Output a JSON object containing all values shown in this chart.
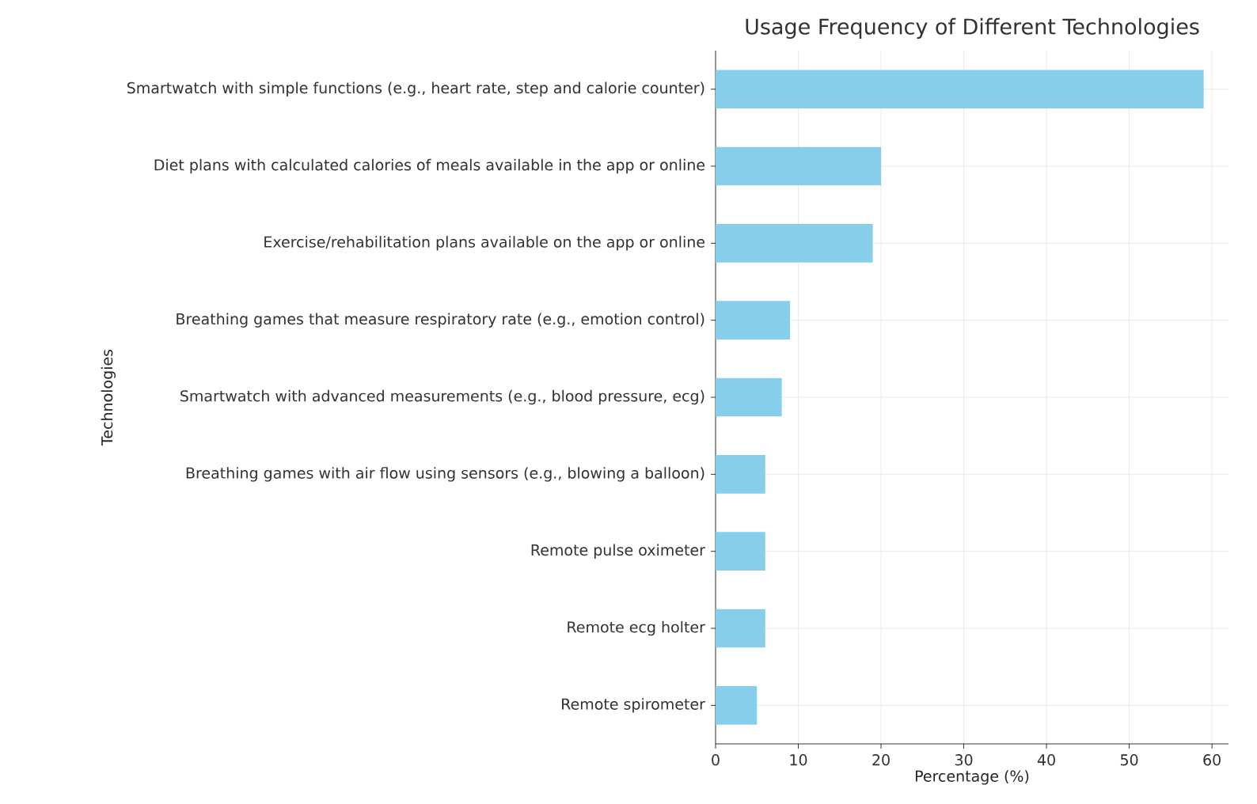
{
  "chart_data": {
    "type": "bar",
    "orientation": "horizontal",
    "title": "Usage Frequency of Different Technologies",
    "xlabel": "Percentage (%)",
    "ylabel": "Technologies",
    "categories": [
      "Smartwatch with simple functions (e.g., heart rate, step and calorie counter)",
      "Diet plans with calculated calories of meals available in the app or online",
      "Exercise/rehabilitation plans available on the app or online",
      "Breathing games that measure respiratory rate (e.g., emotion control)",
      "Smartwatch with advanced measurements (e.g., blood pressure, ecg)",
      "Breathing games with air flow using sensors (e.g., blowing a balloon)",
      "Remote pulse oximeter",
      "Remote ecg holter",
      "Remote spirometer"
    ],
    "values": [
      59,
      20,
      19,
      9,
      8,
      6,
      6,
      6,
      5
    ],
    "color": "#87ceeb",
    "xlim": [
      0,
      62
    ],
    "xticks": [
      0,
      10,
      20,
      30,
      40,
      50,
      60
    ],
    "grid": true
  }
}
